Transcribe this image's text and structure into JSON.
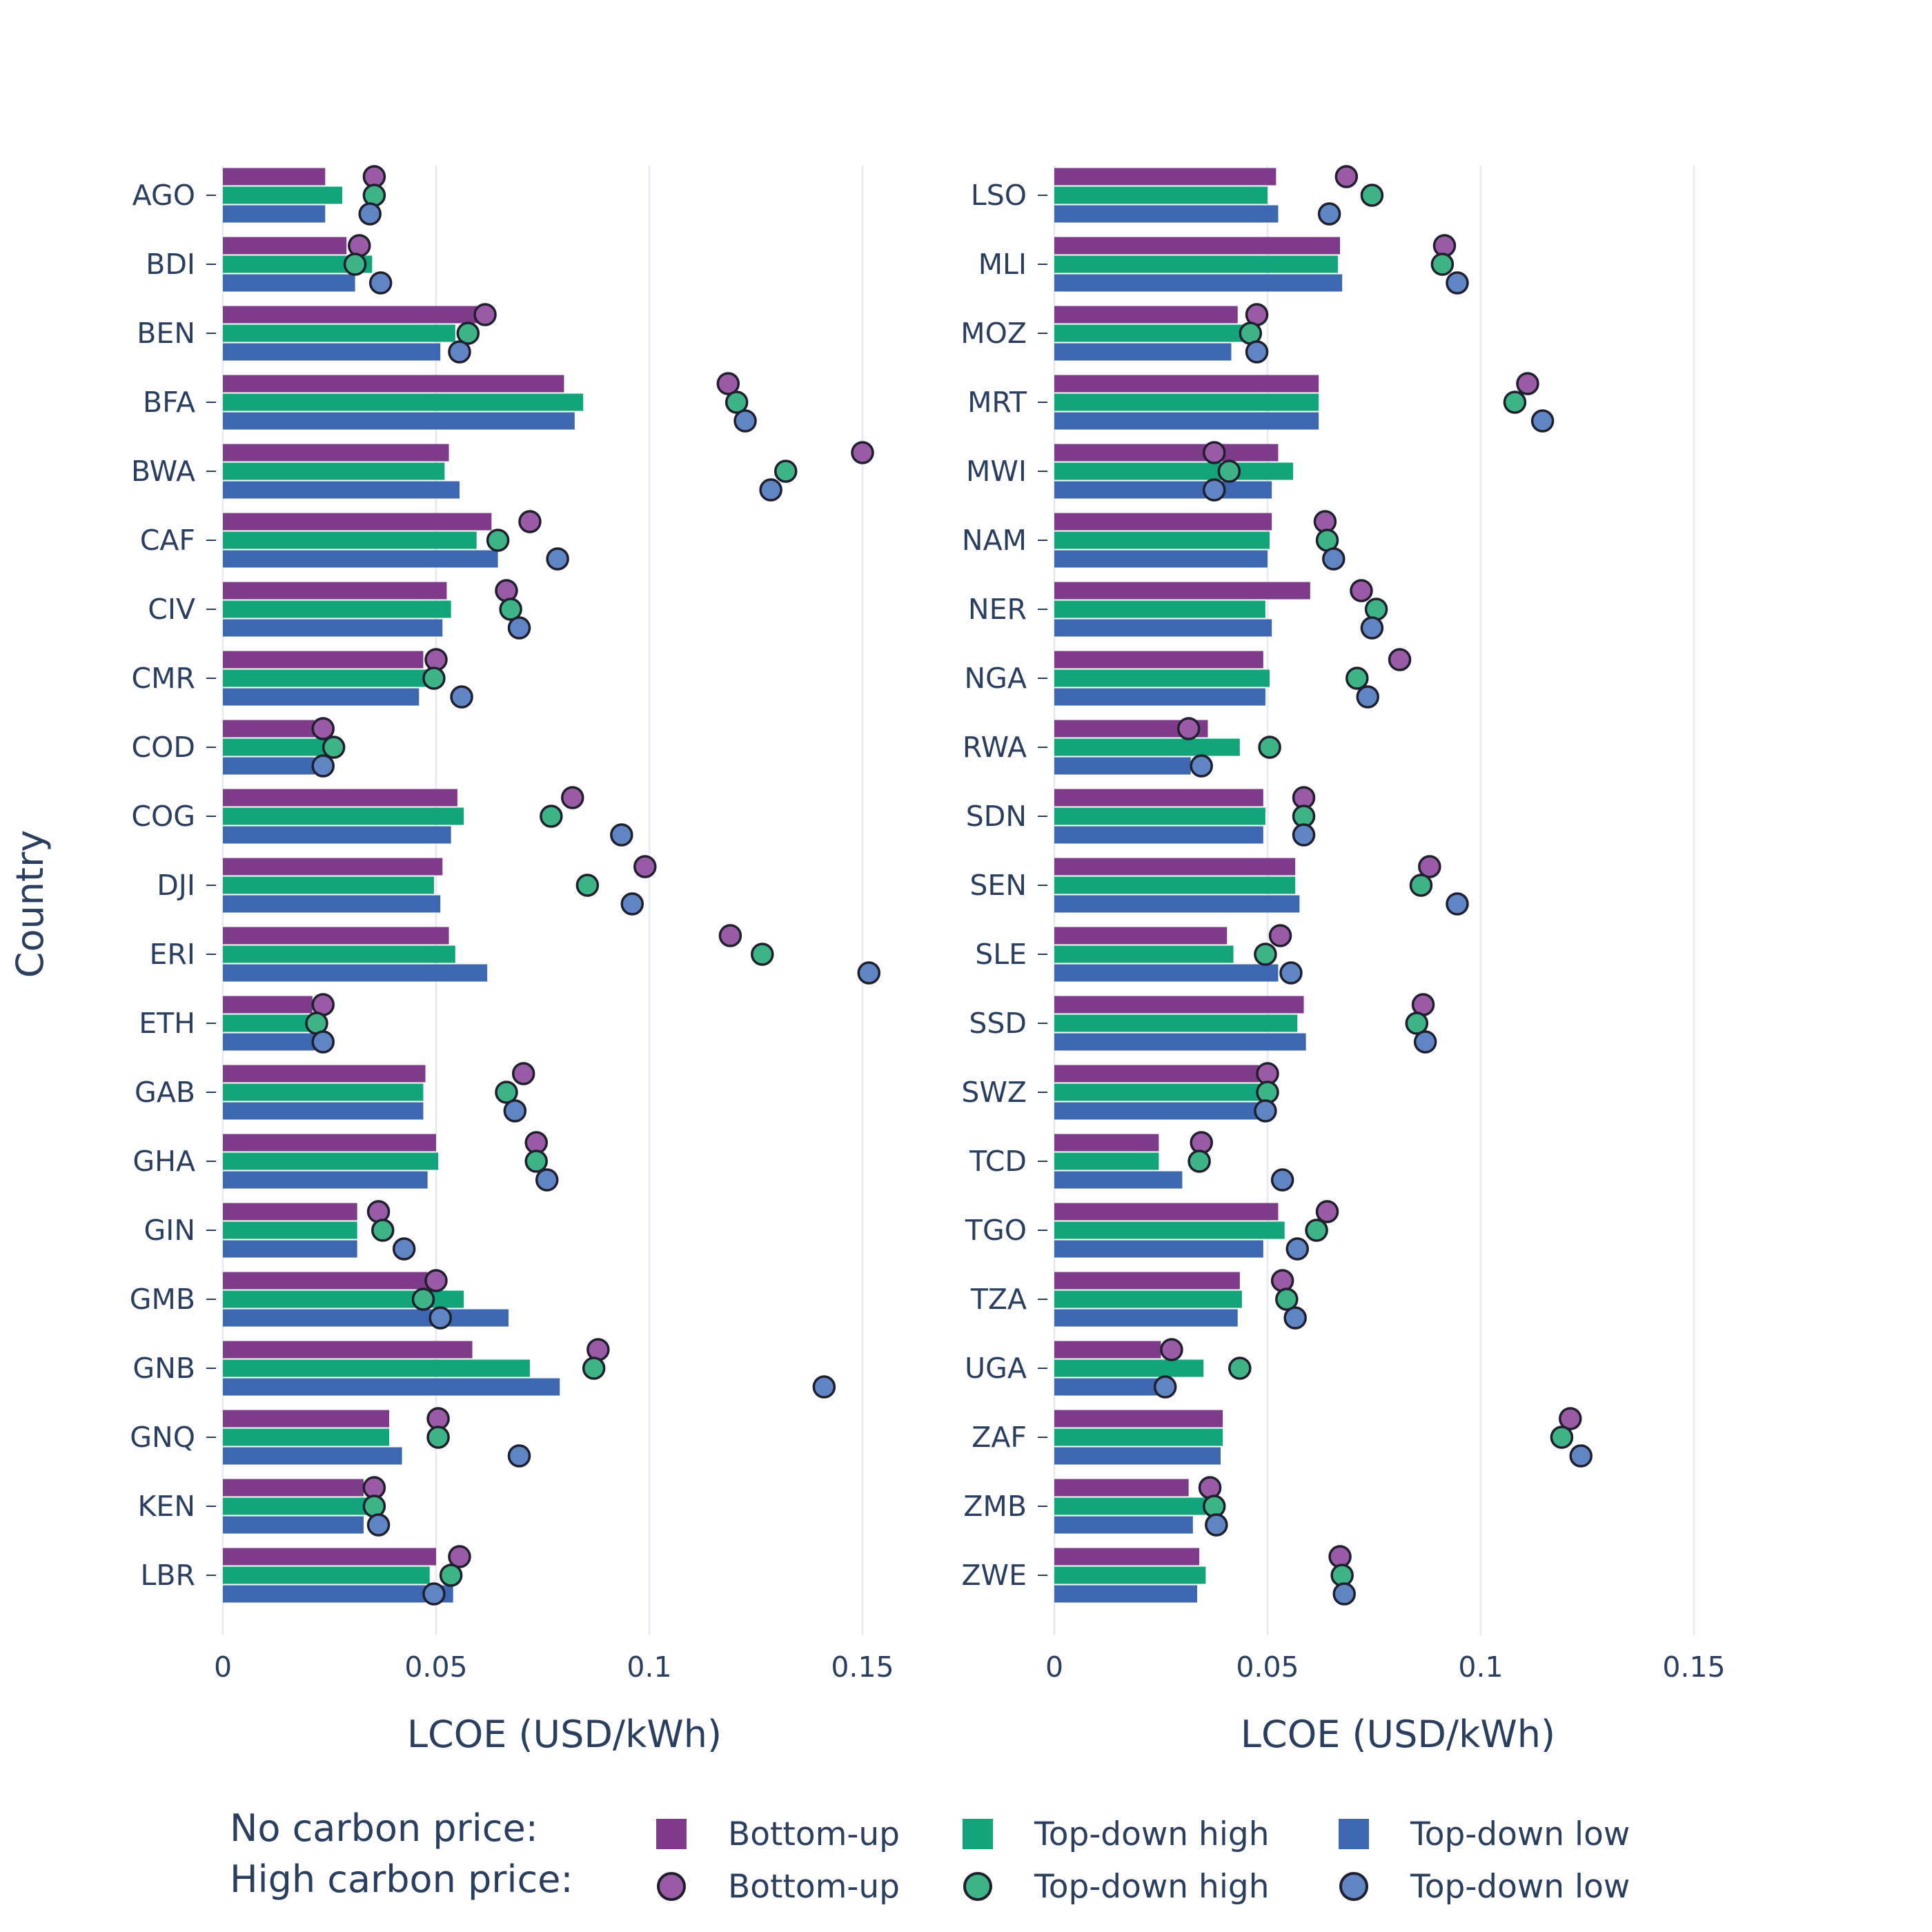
{
  "colors": {
    "bottom_up": "#7e3b8a",
    "top_down_high": "#12a47a",
    "top_down_low": "#3d67b0",
    "bottom_up_marker": "#9a5aa6",
    "top_down_high_marker": "#3cb486",
    "top_down_low_marker": "#5f85c4",
    "text": "#2a3f5f",
    "grid": "#e8ecf3"
  },
  "legend": {
    "no_carbon_label": "No carbon price:",
    "high_carbon_label": "High carbon price:",
    "entries": [
      "Bottom-up",
      "Top-down high",
      "Top-down low"
    ]
  },
  "chart_data": [
    {
      "type": "bar",
      "orientation": "horizontal",
      "panel": "left",
      "xlabel": "LCOE (USD/kWh)",
      "ylabel": "Country",
      "xlim": [
        0,
        0.17
      ],
      "xticks": [
        "0",
        "0.05",
        "0.1",
        "0.15"
      ],
      "xtick_values": [
        0,
        0.05,
        0.1,
        0.15
      ],
      "categories": [
        "AGO",
        "BDI",
        "BEN",
        "BFA",
        "BWA",
        "CAF",
        "CIV",
        "CMR",
        "COD",
        "COG",
        "DJI",
        "ERI",
        "ETH",
        "GAB",
        "GHA",
        "GIN",
        "GMB",
        "GNB",
        "GNQ",
        "KEN",
        "LBR"
      ],
      "series": [
        {
          "name": "Bottom-up",
          "carbon": "No carbon price",
          "kind": "bar",
          "values": [
            0.024,
            0.029,
            0.06,
            0.08,
            0.053,
            0.063,
            0.0525,
            0.047,
            0.0215,
            0.055,
            0.0515,
            0.053,
            0.021,
            0.0475,
            0.05,
            0.0315,
            0.048,
            0.0585,
            0.039,
            0.033,
            0.05
          ]
        },
        {
          "name": "Top-down high",
          "carbon": "No carbon price",
          "kind": "bar",
          "values": [
            0.028,
            0.035,
            0.0545,
            0.0845,
            0.052,
            0.0595,
            0.0535,
            0.05,
            0.0255,
            0.0565,
            0.0495,
            0.0545,
            0.0215,
            0.047,
            0.0505,
            0.0315,
            0.0565,
            0.072,
            0.039,
            0.036,
            0.0485
          ]
        },
        {
          "name": "Top-down low",
          "carbon": "No carbon price",
          "kind": "bar",
          "values": [
            0.024,
            0.031,
            0.051,
            0.0825,
            0.0555,
            0.0645,
            0.0515,
            0.046,
            0.0215,
            0.0535,
            0.051,
            0.062,
            0.0215,
            0.047,
            0.048,
            0.0315,
            0.067,
            0.079,
            0.042,
            0.033,
            0.054
          ]
        },
        {
          "name": "Bottom-up",
          "carbon": "High carbon price",
          "kind": "marker",
          "values": [
            0.0355,
            0.032,
            0.0615,
            0.1185,
            0.15,
            0.072,
            0.0665,
            0.05,
            0.0235,
            0.082,
            0.099,
            0.119,
            0.0235,
            0.0705,
            0.0735,
            0.0365,
            0.05,
            0.088,
            0.0505,
            0.0355,
            0.0555
          ]
        },
        {
          "name": "Top-down high",
          "carbon": "High carbon price",
          "kind": "marker",
          "values": [
            0.0355,
            0.031,
            0.0575,
            0.1205,
            0.132,
            0.0645,
            0.0675,
            0.0495,
            0.026,
            0.077,
            0.0855,
            0.1265,
            0.022,
            0.0665,
            0.0735,
            0.0375,
            0.047,
            0.087,
            0.0505,
            0.0355,
            0.0535
          ]
        },
        {
          "name": "Top-down low",
          "carbon": "High carbon price",
          "kind": "marker",
          "values": [
            0.0345,
            0.037,
            0.0555,
            0.1225,
            0.1285,
            0.0785,
            0.0695,
            0.056,
            0.0235,
            0.0935,
            0.096,
            0.1515,
            0.0235,
            0.0685,
            0.076,
            0.0425,
            0.051,
            0.141,
            0.0695,
            0.0365,
            0.0495
          ]
        }
      ]
    },
    {
      "type": "bar",
      "orientation": "horizontal",
      "panel": "right",
      "xlabel": "LCOE (USD/kWh)",
      "ylabel": "",
      "xlim": [
        0,
        0.17
      ],
      "xticks": [
        "0",
        "0.05",
        "0.1",
        "0.15"
      ],
      "xtick_values": [
        0,
        0.05,
        0.1,
        0.15
      ],
      "categories": [
        "LSO",
        "MLI",
        "MOZ",
        "MRT",
        "MWI",
        "NAM",
        "NER",
        "NGA",
        "RWA",
        "SDN",
        "SEN",
        "SLE",
        "SSD",
        "SWZ",
        "TCD",
        "TGO",
        "TZA",
        "UGA",
        "ZAF",
        "ZMB",
        "ZWE"
      ],
      "series": [
        {
          "name": "Bottom-up",
          "carbon": "No carbon price",
          "kind": "bar",
          "values": [
            0.052,
            0.067,
            0.043,
            0.062,
            0.0525,
            0.051,
            0.06,
            0.049,
            0.036,
            0.049,
            0.0565,
            0.0405,
            0.0585,
            0.048,
            0.0245,
            0.0525,
            0.0435,
            0.025,
            0.0395,
            0.0315,
            0.034
          ]
        },
        {
          "name": "Top-down high",
          "carbon": "No carbon price",
          "kind": "bar",
          "values": [
            0.05,
            0.0665,
            0.046,
            0.062,
            0.056,
            0.0505,
            0.0495,
            0.0505,
            0.0435,
            0.0495,
            0.0565,
            0.042,
            0.057,
            0.05,
            0.0245,
            0.054,
            0.044,
            0.035,
            0.0395,
            0.0355,
            0.0355
          ]
        },
        {
          "name": "Top-down low",
          "carbon": "No carbon price",
          "kind": "bar",
          "values": [
            0.0525,
            0.0675,
            0.0415,
            0.062,
            0.051,
            0.05,
            0.051,
            0.0495,
            0.032,
            0.049,
            0.0575,
            0.0525,
            0.059,
            0.0495,
            0.03,
            0.049,
            0.043,
            0.0275,
            0.039,
            0.0325,
            0.0335
          ]
        },
        {
          "name": "Bottom-up",
          "carbon": "High carbon price",
          "kind": "marker",
          "values": [
            0.0685,
            0.0915,
            0.0475,
            0.111,
            0.0375,
            0.0635,
            0.072,
            0.081,
            0.0315,
            0.0585,
            0.088,
            0.053,
            0.0865,
            0.05,
            0.0345,
            0.064,
            0.0535,
            0.0275,
            0.121,
            0.0365,
            0.067
          ]
        },
        {
          "name": "Top-down high",
          "carbon": "High carbon price",
          "kind": "marker",
          "values": [
            0.0745,
            0.091,
            0.046,
            0.108,
            0.041,
            0.064,
            0.0755,
            0.071,
            0.0505,
            0.0585,
            0.086,
            0.0495,
            0.085,
            0.05,
            0.034,
            0.0615,
            0.0545,
            0.0435,
            0.119,
            0.0375,
            0.0675
          ]
        },
        {
          "name": "Top-down low",
          "carbon": "High carbon price",
          "kind": "marker",
          "values": [
            0.0645,
            0.0945,
            0.0475,
            0.1145,
            0.0375,
            0.0655,
            0.0745,
            0.0735,
            0.0345,
            0.0585,
            0.0945,
            0.0555,
            0.087,
            0.0495,
            0.0535,
            0.057,
            0.0565,
            0.026,
            0.1235,
            0.038,
            0.068
          ]
        }
      ]
    }
  ]
}
